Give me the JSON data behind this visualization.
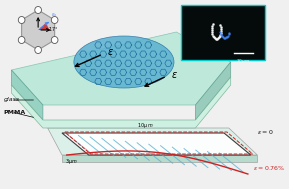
{
  "bg_color": "#f0f0f0",
  "glass_color": "#b8e8d8",
  "glass_dark": "#8ecfbf",
  "graphene_color": "#5ab0d0",
  "graphene_hex_color": "#2070a0",
  "pmma_color": "#c8f0e0",
  "substrate_color": "#d8f0e8",
  "inset_bg": "#050a0a",
  "label_glass": "glass",
  "label_pmma": "PMMA",
  "label_strain1": "$\\varepsilon$",
  "label_strain2": "$\\varepsilon = 0$",
  "label_strain3": "$\\varepsilon = 0.76\\%$",
  "label_10um": "$10\\,\\mu m$",
  "label_3um": "$3\\,\\mu m$",
  "arrow_color": "#111111",
  "red_curve_color": "#cc2222",
  "dashed_color": "#cc2222",
  "stripe_color": "#5ab0d0",
  "hex_edge_color": "#2070a0",
  "inset_border": "#00cccc",
  "strain_label_color": "#cc2222",
  "black": "#111111",
  "white": "#ffffff",
  "blue_arrow": "#4488ff",
  "gray_hex_face": "#c8c8c8",
  "gray_hex_edge": "#888888",
  "red_tri": "#cc2222",
  "sub_top_color": "#d8f0e8",
  "sub_bot_color": "#b0d8c8",
  "channel_face": "#ffffff",
  "channel_edge": "#333333",
  "glass_right_color": "#90c8b8",
  "glass_edge": "#60a090",
  "glass_top_edge": "#80c0b0"
}
